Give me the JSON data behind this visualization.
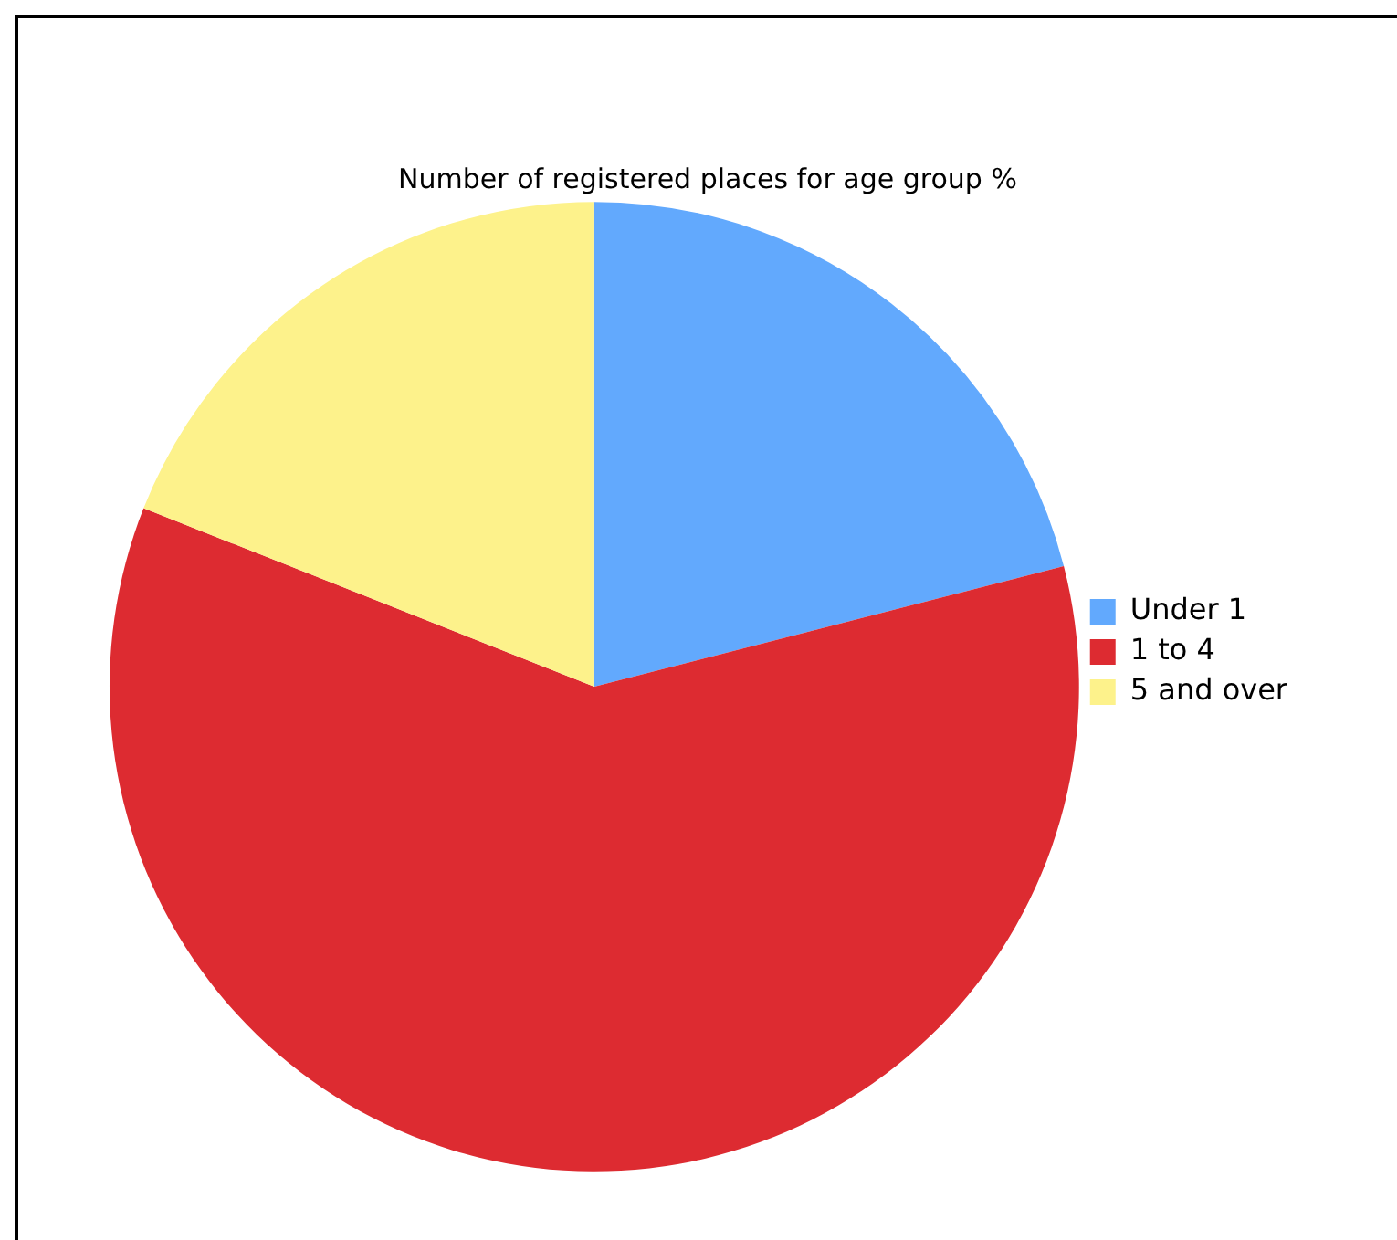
{
  "chart_data": {
    "type": "pie",
    "title": "Number of registered places for age group %",
    "categories": [
      "Under 1",
      "1 to 4",
      "5 and over"
    ],
    "values": [
      21,
      60,
      19
    ],
    "colors": [
      "#62a9fd",
      "#dd2b31",
      "#fdf28b"
    ],
    "legend": "right"
  }
}
